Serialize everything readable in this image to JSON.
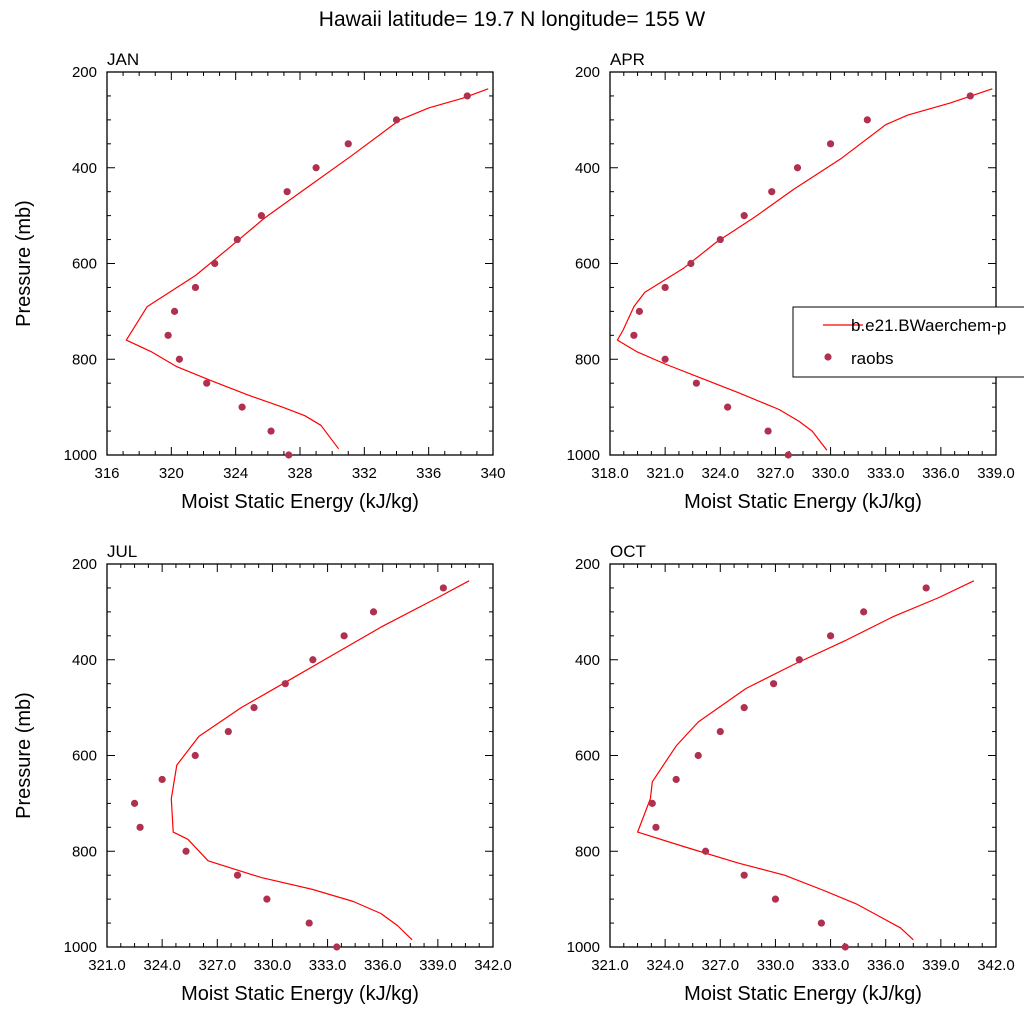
{
  "figure_title": "Hawaii  latitude= 19.7 N longitude= 155 W",
  "chart_data": [
    {
      "type": "line",
      "title": "JAN",
      "xlabel": "Moist Static Energy (kJ/kg)",
      "ylabel": "Pressure (mb)",
      "xlim": [
        316,
        340
      ],
      "ylim": [
        1000,
        200
      ],
      "y_inverted": true,
      "xticks": [
        316,
        320,
        324,
        328,
        332,
        336,
        340
      ],
      "xtick_labels": [
        "316",
        "320",
        "324",
        "328",
        "332",
        "336",
        "340"
      ],
      "yticks": [
        200,
        400,
        600,
        800,
        1000
      ],
      "ytick_labels": [
        "200",
        "400",
        "600",
        "800",
        "1000"
      ],
      "series": [
        {
          "name": "b.e21.BWaerchem-p",
          "kind": "line",
          "color": "#ff0000",
          "points": [
            [
              339.7,
              235
            ],
            [
              338.1,
              255
            ],
            [
              336.0,
              275
            ],
            [
              334.2,
              300
            ],
            [
              331.2,
              375
            ],
            [
              328.5,
              440
            ],
            [
              325.8,
              505
            ],
            [
              323.5,
              570
            ],
            [
              321.5,
              625
            ],
            [
              318.5,
              690
            ],
            [
              317.2,
              760
            ],
            [
              318.8,
              785
            ],
            [
              320.3,
              815
            ],
            [
              322.5,
              845
            ],
            [
              324.8,
              875
            ],
            [
              326.9,
              900
            ],
            [
              328.3,
              918
            ],
            [
              329.3,
              938
            ],
            [
              330.4,
              987
            ]
          ]
        },
        {
          "name": "raobs",
          "kind": "scatter",
          "color": "#b03050",
          "points": [
            [
              338.4,
              250
            ],
            [
              334.0,
              300
            ],
            [
              331.0,
              350
            ],
            [
              329.0,
              400
            ],
            [
              327.2,
              450
            ],
            [
              325.6,
              500
            ],
            [
              324.1,
              550
            ],
            [
              322.7,
              600
            ],
            [
              321.5,
              650
            ],
            [
              320.2,
              700
            ],
            [
              319.8,
              750
            ],
            [
              320.5,
              800
            ],
            [
              322.2,
              850
            ],
            [
              324.4,
              900
            ],
            [
              326.2,
              950
            ],
            [
              327.3,
              1000
            ]
          ]
        }
      ]
    },
    {
      "type": "line",
      "title": "APR",
      "xlabel": "Moist Static Energy (kJ/kg)",
      "ylabel": "",
      "xlim": [
        318,
        339
      ],
      "ylim": [
        1000,
        200
      ],
      "y_inverted": true,
      "xticks": [
        318,
        321,
        324,
        327,
        330,
        333,
        336,
        339
      ],
      "xtick_labels": [
        "318.0",
        "321.0",
        "324.0",
        "327.0",
        "330.0",
        "333.0",
        "336.0",
        "339.0"
      ],
      "yticks": [
        200,
        400,
        600,
        800,
        1000
      ],
      "ytick_labels": [
        "200",
        "400",
        "600",
        "800",
        "1000"
      ],
      "legend": {
        "placement": "right",
        "entries": [
          "b.e21.BWaerchem-p",
          "raobs"
        ]
      },
      "series": [
        {
          "name": "b.e21.BWaerchem-p",
          "kind": "line",
          "color": "#ff0000",
          "points": [
            [
              338.8,
              235
            ],
            [
              336.5,
              265
            ],
            [
              334.2,
              290
            ],
            [
              333.0,
              310
            ],
            [
              330.6,
              380
            ],
            [
              328.0,
              445
            ],
            [
              325.8,
              505
            ],
            [
              323.8,
              555
            ],
            [
              322.0,
              610
            ],
            [
              319.9,
              660
            ],
            [
              319.3,
              690
            ],
            [
              318.7,
              740
            ],
            [
              318.4,
              760
            ],
            [
              319.5,
              785
            ],
            [
              321.0,
              810
            ],
            [
              323.0,
              840
            ],
            [
              325.0,
              870
            ],
            [
              327.2,
              905
            ],
            [
              328.3,
              930
            ],
            [
              329.0,
              950
            ],
            [
              329.8,
              990
            ]
          ]
        },
        {
          "name": "raobs",
          "kind": "scatter",
          "color": "#b03050",
          "points": [
            [
              337.6,
              250
            ],
            [
              332.0,
              300
            ],
            [
              330.0,
              350
            ],
            [
              328.2,
              400
            ],
            [
              326.8,
              450
            ],
            [
              325.3,
              500
            ],
            [
              324.0,
              550
            ],
            [
              322.4,
              600
            ],
            [
              321.0,
              650
            ],
            [
              319.6,
              700
            ],
            [
              319.3,
              750
            ],
            [
              321.0,
              800
            ],
            [
              322.7,
              850
            ],
            [
              324.4,
              900
            ],
            [
              326.6,
              950
            ],
            [
              327.7,
              1000
            ]
          ]
        }
      ]
    },
    {
      "type": "line",
      "title": "JUL",
      "xlabel": "Moist Static Energy (kJ/kg)",
      "ylabel": "Pressure (mb)",
      "xlim": [
        321,
        342
      ],
      "ylim": [
        1000,
        200
      ],
      "y_inverted": true,
      "xticks": [
        321,
        324,
        327,
        330,
        333,
        336,
        339,
        342
      ],
      "xtick_labels": [
        "321.0",
        "324.0",
        "327.0",
        "330.0",
        "333.0",
        "336.0",
        "339.0",
        "342.0"
      ],
      "yticks": [
        200,
        400,
        600,
        800,
        1000
      ],
      "ytick_labels": [
        "200",
        "400",
        "600",
        "800",
        "1000"
      ],
      "series": [
        {
          "name": "b.e21.BWaerchem-p",
          "kind": "line",
          "color": "#ff0000",
          "points": [
            [
              340.7,
              235
            ],
            [
              339.0,
              270
            ],
            [
              336.0,
              330
            ],
            [
              333.5,
              385
            ],
            [
              330.8,
              445
            ],
            [
              328.3,
              500
            ],
            [
              326.0,
              560
            ],
            [
              324.8,
              620
            ],
            [
              324.5,
              690
            ],
            [
              324.6,
              760
            ],
            [
              325.4,
              775
            ],
            [
              326.5,
              820
            ],
            [
              329.4,
              855
            ],
            [
              332.2,
              880
            ],
            [
              334.4,
              905
            ],
            [
              335.9,
              930
            ],
            [
              336.8,
              955
            ],
            [
              337.6,
              985
            ]
          ]
        },
        {
          "name": "raobs",
          "kind": "scatter",
          "color": "#b03050",
          "points": [
            [
              339.3,
              250
            ],
            [
              335.5,
              300
            ],
            [
              333.9,
              350
            ],
            [
              332.2,
              400
            ],
            [
              330.7,
              450
            ],
            [
              329.0,
              500
            ],
            [
              327.6,
              550
            ],
            [
              325.8,
              600
            ],
            [
              324.0,
              650
            ],
            [
              322.5,
              700
            ],
            [
              322.8,
              750
            ],
            [
              325.3,
              800
            ],
            [
              328.1,
              850
            ],
            [
              329.7,
              900
            ],
            [
              332.0,
              950
            ],
            [
              333.5,
              1000
            ]
          ]
        }
      ]
    },
    {
      "type": "line",
      "title": "OCT",
      "xlabel": "Moist Static Energy (kJ/kg)",
      "ylabel": "",
      "xlim": [
        321,
        342
      ],
      "ylim": [
        1000,
        200
      ],
      "y_inverted": true,
      "xticks": [
        321,
        324,
        327,
        330,
        333,
        336,
        339,
        342
      ],
      "xtick_labels": [
        "321.0",
        "324.0",
        "327.0",
        "330.0",
        "333.0",
        "336.0",
        "339.0",
        "342.0"
      ],
      "yticks": [
        200,
        400,
        600,
        800,
        1000
      ],
      "ytick_labels": [
        "200",
        "400",
        "600",
        "800",
        "1000"
      ],
      "series": [
        {
          "name": "b.e21.BWaerchem-p",
          "kind": "line",
          "color": "#ff0000",
          "points": [
            [
              340.8,
              235
            ],
            [
              338.9,
              270
            ],
            [
              336.4,
              310
            ],
            [
              333.8,
              360
            ],
            [
              331.0,
              410
            ],
            [
              328.4,
              460
            ],
            [
              325.8,
              530
            ],
            [
              324.6,
              580
            ],
            [
              323.3,
              655
            ],
            [
              323.2,
              690
            ],
            [
              322.5,
              760
            ],
            [
              325.0,
              790
            ],
            [
              328.0,
              825
            ],
            [
              330.5,
              850
            ],
            [
              332.5,
              880
            ],
            [
              334.4,
              910
            ],
            [
              335.6,
              935
            ],
            [
              336.8,
              960
            ],
            [
              337.5,
              985
            ]
          ]
        },
        {
          "name": "raobs",
          "kind": "scatter",
          "color": "#b03050",
          "points": [
            [
              338.2,
              250
            ],
            [
              334.8,
              300
            ],
            [
              333.0,
              350
            ],
            [
              331.3,
              400
            ],
            [
              329.9,
              450
            ],
            [
              328.3,
              500
            ],
            [
              327.0,
              550
            ],
            [
              325.8,
              600
            ],
            [
              324.6,
              650
            ],
            [
              323.3,
              700
            ],
            [
              323.5,
              750
            ],
            [
              326.2,
              800
            ],
            [
              328.3,
              850
            ],
            [
              330.0,
              900
            ],
            [
              332.5,
              950
            ],
            [
              333.8,
              1000
            ]
          ]
        }
      ]
    }
  ]
}
